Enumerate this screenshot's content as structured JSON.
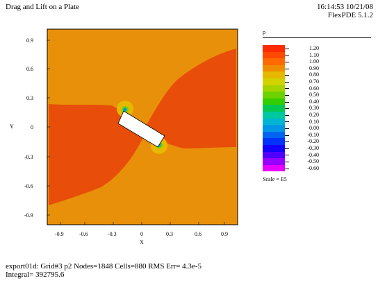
{
  "header": {
    "title": "Drag and Lift on a Plate",
    "timestamp": "16:14:53 10/21/08",
    "app_version": "FlexPDE 5.1.2"
  },
  "plot": {
    "xlabel": "X",
    "ylabel": "Y",
    "x_ticks": [
      "-0.9",
      "-0.6",
      "-0.3",
      "0",
      "0.3",
      "0.6",
      "0.9"
    ],
    "y_ticks": [
      "0.9",
      "0.6",
      "0.3",
      "0",
      "-0.3",
      "-0.6",
      "-0.9"
    ],
    "colors": {
      "background_field": "#e8900a",
      "high_region": "#e84d0a",
      "plate": "#ffffff"
    }
  },
  "legend": {
    "variable": "p",
    "scale_label": "Scale = E5",
    "levels": [
      {
        "value": "1.20",
        "color": "#ff2a00"
      },
      {
        "value": "1.10",
        "color": "#ff4800"
      },
      {
        "value": "1.00",
        "color": "#ff6a00"
      },
      {
        "value": "0.90",
        "color": "#f08c00"
      },
      {
        "value": "0.80",
        "color": "#e6b800"
      },
      {
        "value": "0.70",
        "color": "#d2d200"
      },
      {
        "value": "0.60",
        "color": "#a6d200"
      },
      {
        "value": "0.50",
        "color": "#6ed200"
      },
      {
        "value": "0.40",
        "color": "#32cd00"
      },
      {
        "value": "0.30",
        "color": "#00c850"
      },
      {
        "value": "0.20",
        "color": "#00c8a0"
      },
      {
        "value": "0.10",
        "color": "#00b4d2"
      },
      {
        "value": "0.00",
        "color": "#0096e6"
      },
      {
        "value": "-0.10",
        "color": "#0064f0"
      },
      {
        "value": "-0.20",
        "color": "#0032ff"
      },
      {
        "value": "-0.30",
        "color": "#1400ff"
      },
      {
        "value": "-0.40",
        "color": "#5000ff"
      },
      {
        "value": "-0.50",
        "color": "#9600ff"
      },
      {
        "value": "-0.60",
        "color": "#e600ff"
      }
    ]
  },
  "footer": {
    "line1": "export01d:  Grid#3  p2  Nodes=1848 Cells=880 RMS Err= 4.3e-5",
    "line2": "Integral=  392795.6"
  }
}
